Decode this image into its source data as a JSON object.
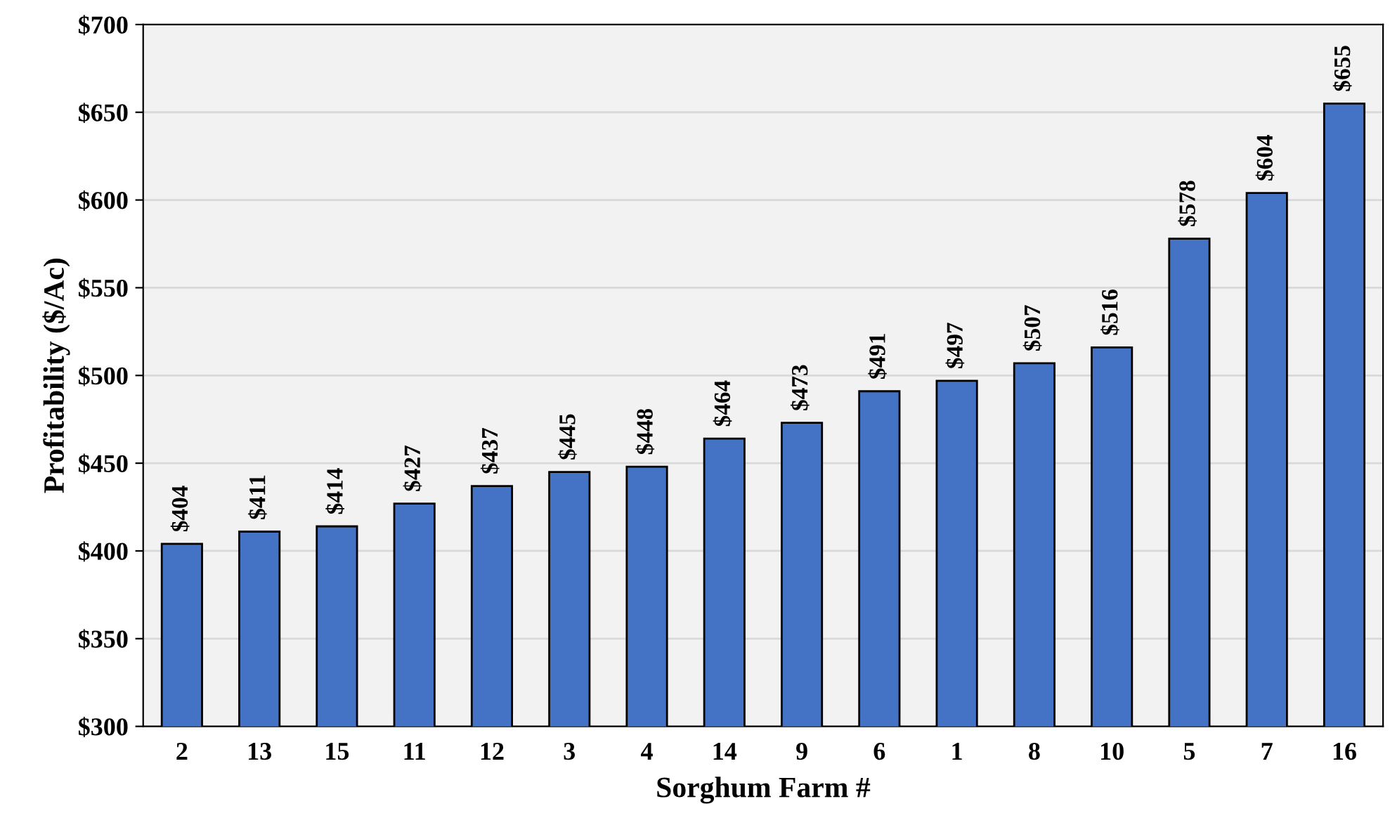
{
  "chart_data": {
    "type": "bar",
    "xlabel": "Sorghum Farm #",
    "ylabel": "Profitability ($/Ac)",
    "categories": [
      "2",
      "13",
      "15",
      "11",
      "12",
      "3",
      "4",
      "14",
      "9",
      "6",
      "1",
      "8",
      "10",
      "5",
      "7",
      "16"
    ],
    "values": [
      404,
      411,
      414,
      427,
      437,
      445,
      448,
      464,
      473,
      491,
      497,
      507,
      516,
      578,
      604,
      655
    ],
    "value_labels": [
      "$404",
      "$411",
      "$414",
      "$427",
      "$437",
      "$445",
      "$448",
      "$464",
      "$473",
      "$491",
      "$497",
      "$507",
      "$516",
      "$578",
      "$604",
      "$655"
    ],
    "color": "#4472c4",
    "ylim": [
      300,
      700
    ],
    "yticks": [
      {
        "value": 300,
        "label": "$300"
      },
      {
        "value": 350,
        "label": "$350"
      },
      {
        "value": 400,
        "label": "$400"
      },
      {
        "value": 450,
        "label": "$450"
      },
      {
        "value": 500,
        "label": "$500"
      },
      {
        "value": 550,
        "label": "$550"
      },
      {
        "value": 600,
        "label": "$600"
      },
      {
        "value": 650,
        "label": "$650"
      },
      {
        "value": 700,
        "label": "$700"
      }
    ],
    "grid": "y"
  }
}
